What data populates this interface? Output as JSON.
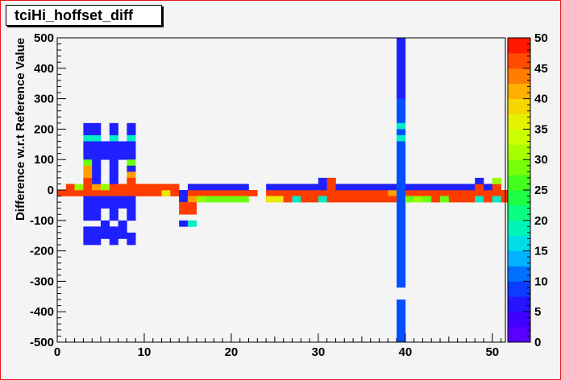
{
  "chart_data": {
    "type": "heatmap",
    "title": "tciHi_hoffset_diff",
    "xlabel": "",
    "ylabel": "Difference w.r.t Reference Value",
    "xlim": [
      0,
      51.5
    ],
    "ylim": [
      -500,
      500
    ],
    "x_ticks": [
      0,
      10,
      20,
      30,
      40,
      50
    ],
    "y_ticks": [
      -500,
      -400,
      -300,
      -200,
      -100,
      0,
      100,
      200,
      300,
      400,
      500
    ],
    "x_bin_width": 1,
    "y_bin_width": 20,
    "color_scale": {
      "min": 0,
      "max": 50,
      "ticks": [
        0,
        5,
        10,
        15,
        20,
        25,
        30,
        35,
        40,
        45,
        50
      ]
    },
    "grid": false,
    "legend": "colorbar-right",
    "cells": [
      [
        0,
        -10,
        47
      ],
      [
        1,
        -10,
        47
      ],
      [
        2,
        -10,
        47
      ],
      [
        3,
        -10,
        47
      ],
      [
        4,
        -10,
        47
      ],
      [
        5,
        -10,
        47
      ],
      [
        6,
        -10,
        47
      ],
      [
        7,
        -10,
        47
      ],
      [
        8,
        -10,
        47
      ],
      [
        9,
        -10,
        47
      ],
      [
        10,
        -10,
        47
      ],
      [
        11,
        -10,
        47
      ],
      [
        12,
        -10,
        37
      ],
      [
        13,
        -10,
        47
      ],
      [
        14,
        -10,
        7
      ],
      [
        15,
        -10,
        47
      ],
      [
        16,
        -10,
        47
      ],
      [
        17,
        -10,
        47
      ],
      [
        18,
        -10,
        47
      ],
      [
        19,
        -10,
        47
      ],
      [
        20,
        -10,
        47
      ],
      [
        21,
        -10,
        47
      ],
      [
        22,
        -10,
        47
      ],
      [
        24,
        -10,
        47
      ],
      [
        25,
        -10,
        47
      ],
      [
        26,
        -10,
        47
      ],
      [
        27,
        -10,
        47
      ],
      [
        28,
        -10,
        47
      ],
      [
        29,
        -10,
        47
      ],
      [
        30,
        -10,
        47
      ],
      [
        31,
        -10,
        47
      ],
      [
        32,
        -10,
        47
      ],
      [
        33,
        -10,
        47
      ],
      [
        34,
        -10,
        47
      ],
      [
        35,
        -10,
        47
      ],
      [
        36,
        -10,
        47
      ],
      [
        37,
        -10,
        47
      ],
      [
        38,
        -10,
        42
      ],
      [
        39,
        -10,
        10
      ],
      [
        40,
        -10,
        47
      ],
      [
        41,
        -10,
        47
      ],
      [
        42,
        -10,
        47
      ],
      [
        43,
        -10,
        47
      ],
      [
        44,
        -10,
        47
      ],
      [
        45,
        -10,
        47
      ],
      [
        46,
        -10,
        47
      ],
      [
        47,
        -10,
        47
      ],
      [
        48,
        -10,
        47
      ],
      [
        49,
        -10,
        47
      ],
      [
        50,
        -10,
        47
      ],
      [
        51,
        -10,
        47
      ],
      [
        1,
        10,
        47
      ],
      [
        2,
        10,
        30
      ],
      [
        3,
        10,
        47
      ],
      [
        4,
        10,
        42
      ],
      [
        5,
        10,
        30
      ],
      [
        6,
        10,
        47
      ],
      [
        7,
        10,
        47
      ],
      [
        8,
        10,
        47
      ],
      [
        9,
        10,
        47
      ],
      [
        10,
        10,
        47
      ],
      [
        11,
        10,
        47
      ],
      [
        12,
        10,
        47
      ],
      [
        13,
        10,
        47
      ],
      [
        15,
        10,
        7
      ],
      [
        16,
        10,
        7
      ],
      [
        17,
        10,
        7
      ],
      [
        18,
        10,
        7
      ],
      [
        19,
        10,
        7
      ],
      [
        20,
        10,
        7
      ],
      [
        21,
        10,
        7
      ],
      [
        24,
        10,
        7
      ],
      [
        25,
        10,
        7
      ],
      [
        26,
        10,
        7
      ],
      [
        27,
        10,
        7
      ],
      [
        28,
        10,
        7
      ],
      [
        29,
        10,
        7
      ],
      [
        30,
        10,
        7
      ],
      [
        31,
        10,
        47
      ],
      [
        32,
        10,
        7
      ],
      [
        33,
        10,
        7
      ],
      [
        34,
        10,
        7
      ],
      [
        35,
        10,
        7
      ],
      [
        36,
        10,
        7
      ],
      [
        37,
        10,
        7
      ],
      [
        38,
        10,
        7
      ],
      [
        39,
        10,
        10
      ],
      [
        40,
        10,
        7
      ],
      [
        41,
        10,
        7
      ],
      [
        42,
        10,
        7
      ],
      [
        43,
        10,
        7
      ],
      [
        44,
        10,
        7
      ],
      [
        45,
        10,
        7
      ],
      [
        46,
        10,
        7
      ],
      [
        47,
        10,
        7
      ],
      [
        48,
        10,
        47
      ],
      [
        49,
        10,
        7
      ],
      [
        50,
        10,
        47
      ],
      [
        14,
        -30,
        7
      ],
      [
        15,
        -30,
        42
      ],
      [
        16,
        -30,
        30
      ],
      [
        17,
        -30,
        28
      ],
      [
        18,
        -30,
        28
      ],
      [
        19,
        -30,
        28
      ],
      [
        20,
        -30,
        28
      ],
      [
        21,
        -30,
        28
      ],
      [
        24,
        -30,
        37
      ],
      [
        25,
        -30,
        37
      ],
      [
        26,
        -30,
        47
      ],
      [
        27,
        -30,
        18
      ],
      [
        28,
        -30,
        47
      ],
      [
        29,
        -30,
        47
      ],
      [
        30,
        -30,
        18
      ],
      [
        31,
        -30,
        47
      ],
      [
        32,
        -30,
        47
      ],
      [
        33,
        -30,
        47
      ],
      [
        34,
        -30,
        47
      ],
      [
        35,
        -30,
        47
      ],
      [
        36,
        -30,
        47
      ],
      [
        37,
        -30,
        47
      ],
      [
        38,
        -30,
        47
      ],
      [
        39,
        -30,
        10
      ],
      [
        40,
        -30,
        28
      ],
      [
        41,
        -30,
        30
      ],
      [
        42,
        -30,
        28
      ],
      [
        43,
        -30,
        47
      ],
      [
        44,
        -30,
        28
      ],
      [
        45,
        -30,
        47
      ],
      [
        46,
        -30,
        47
      ],
      [
        47,
        -30,
        47
      ],
      [
        48,
        -30,
        18
      ],
      [
        49,
        -30,
        47
      ],
      [
        50,
        -30,
        18
      ],
      [
        51,
        -30,
        47
      ],
      [
        30,
        30,
        7
      ],
      [
        31,
        30,
        47
      ],
      [
        48,
        30,
        7
      ],
      [
        50,
        30,
        30
      ],
      [
        14,
        -50,
        47
      ],
      [
        15,
        -50,
        47
      ],
      [
        14,
        -70,
        47
      ],
      [
        15,
        -70,
        47
      ],
      [
        14,
        -110,
        7
      ],
      [
        15,
        -110,
        18
      ],
      [
        3,
        210,
        7
      ],
      [
        4,
        210,
        7
      ],
      [
        6,
        210,
        7
      ],
      [
        8,
        210,
        7
      ],
      [
        3,
        190,
        7
      ],
      [
        4,
        190,
        7
      ],
      [
        6,
        190,
        7
      ],
      [
        8,
        190,
        7
      ],
      [
        3,
        170,
        18
      ],
      [
        4,
        170,
        18
      ],
      [
        6,
        170,
        18
      ],
      [
        8,
        170,
        18
      ],
      [
        3,
        150,
        7
      ],
      [
        4,
        150,
        7
      ],
      [
        5,
        150,
        7
      ],
      [
        6,
        150,
        7
      ],
      [
        7,
        150,
        7
      ],
      [
        8,
        150,
        7
      ],
      [
        3,
        130,
        7
      ],
      [
        4,
        130,
        7
      ],
      [
        5,
        130,
        7
      ],
      [
        6,
        130,
        7
      ],
      [
        7,
        130,
        7
      ],
      [
        8,
        130,
        7
      ],
      [
        3,
        110,
        7
      ],
      [
        4,
        110,
        7
      ],
      [
        5,
        110,
        7
      ],
      [
        6,
        110,
        7
      ],
      [
        7,
        110,
        7
      ],
      [
        8,
        110,
        7
      ],
      [
        3,
        90,
        28
      ],
      [
        4,
        90,
        7
      ],
      [
        6,
        90,
        7
      ],
      [
        8,
        90,
        28
      ],
      [
        3,
        70,
        42
      ],
      [
        4,
        70,
        7
      ],
      [
        6,
        70,
        7
      ],
      [
        8,
        70,
        7
      ],
      [
        3,
        50,
        42
      ],
      [
        4,
        50,
        7
      ],
      [
        6,
        50,
        7
      ],
      [
        8,
        50,
        42
      ],
      [
        3,
        30,
        47
      ],
      [
        4,
        30,
        7
      ],
      [
        6,
        30,
        7
      ],
      [
        8,
        30,
        47
      ],
      [
        3,
        -30,
        7
      ],
      [
        4,
        -30,
        7
      ],
      [
        5,
        -30,
        7
      ],
      [
        6,
        -30,
        7
      ],
      [
        7,
        -30,
        7
      ],
      [
        8,
        -30,
        7
      ],
      [
        3,
        -50,
        7
      ],
      [
        4,
        -50,
        7
      ],
      [
        5,
        -50,
        7
      ],
      [
        6,
        -50,
        7
      ],
      [
        7,
        -50,
        7
      ],
      [
        8,
        -50,
        7
      ],
      [
        3,
        -70,
        7
      ],
      [
        4,
        -70,
        7
      ],
      [
        6,
        -70,
        7
      ],
      [
        8,
        -70,
        7
      ],
      [
        3,
        -90,
        7
      ],
      [
        4,
        -90,
        7
      ],
      [
        6,
        -90,
        7
      ],
      [
        8,
        -90,
        7
      ],
      [
        5,
        -110,
        7
      ],
      [
        7,
        -110,
        7
      ],
      [
        3,
        -130,
        7
      ],
      [
        4,
        -130,
        7
      ],
      [
        5,
        -130,
        7
      ],
      [
        6,
        -130,
        7
      ],
      [
        7,
        -130,
        7
      ],
      [
        3,
        -150,
        7
      ],
      [
        4,
        -150,
        7
      ],
      [
        5,
        -150,
        7
      ],
      [
        6,
        -150,
        7
      ],
      [
        7,
        -150,
        7
      ],
      [
        8,
        -150,
        7
      ],
      [
        3,
        -170,
        7
      ],
      [
        4,
        -170,
        7
      ],
      [
        6,
        -170,
        7
      ],
      [
        8,
        -170,
        7
      ],
      [
        39,
        490,
        7
      ],
      [
        39,
        470,
        7
      ],
      [
        39,
        450,
        7
      ],
      [
        39,
        430,
        7
      ],
      [
        39,
        410,
        7
      ],
      [
        39,
        390,
        7
      ],
      [
        39,
        370,
        7
      ],
      [
        39,
        350,
        7
      ],
      [
        39,
        330,
        7
      ],
      [
        39,
        310,
        7
      ],
      [
        39,
        290,
        10
      ],
      [
        39,
        270,
        10
      ],
      [
        39,
        250,
        10
      ],
      [
        39,
        230,
        10
      ],
      [
        39,
        210,
        18
      ],
      [
        39,
        190,
        10
      ],
      [
        39,
        170,
        18
      ],
      [
        39,
        150,
        10
      ],
      [
        39,
        130,
        10
      ],
      [
        39,
        110,
        10
      ],
      [
        39,
        90,
        10
      ],
      [
        39,
        70,
        10
      ],
      [
        39,
        50,
        10
      ],
      [
        39,
        30,
        10
      ],
      [
        39,
        -50,
        10
      ],
      [
        39,
        -70,
        10
      ],
      [
        39,
        -90,
        10
      ],
      [
        39,
        -110,
        10
      ],
      [
        39,
        -130,
        10
      ],
      [
        39,
        -150,
        10
      ],
      [
        39,
        -170,
        10
      ],
      [
        39,
        -190,
        10
      ],
      [
        39,
        -210,
        10
      ],
      [
        39,
        -230,
        10
      ],
      [
        39,
        -250,
        10
      ],
      [
        39,
        -270,
        10
      ],
      [
        39,
        -290,
        10
      ],
      [
        39,
        -310,
        10
      ],
      [
        39,
        -370,
        10
      ],
      [
        39,
        -390,
        10
      ],
      [
        39,
        -410,
        10
      ],
      [
        39,
        -430,
        10
      ],
      [
        39,
        -450,
        10
      ],
      [
        39,
        -470,
        10
      ],
      [
        39,
        -490,
        10
      ]
    ]
  }
}
